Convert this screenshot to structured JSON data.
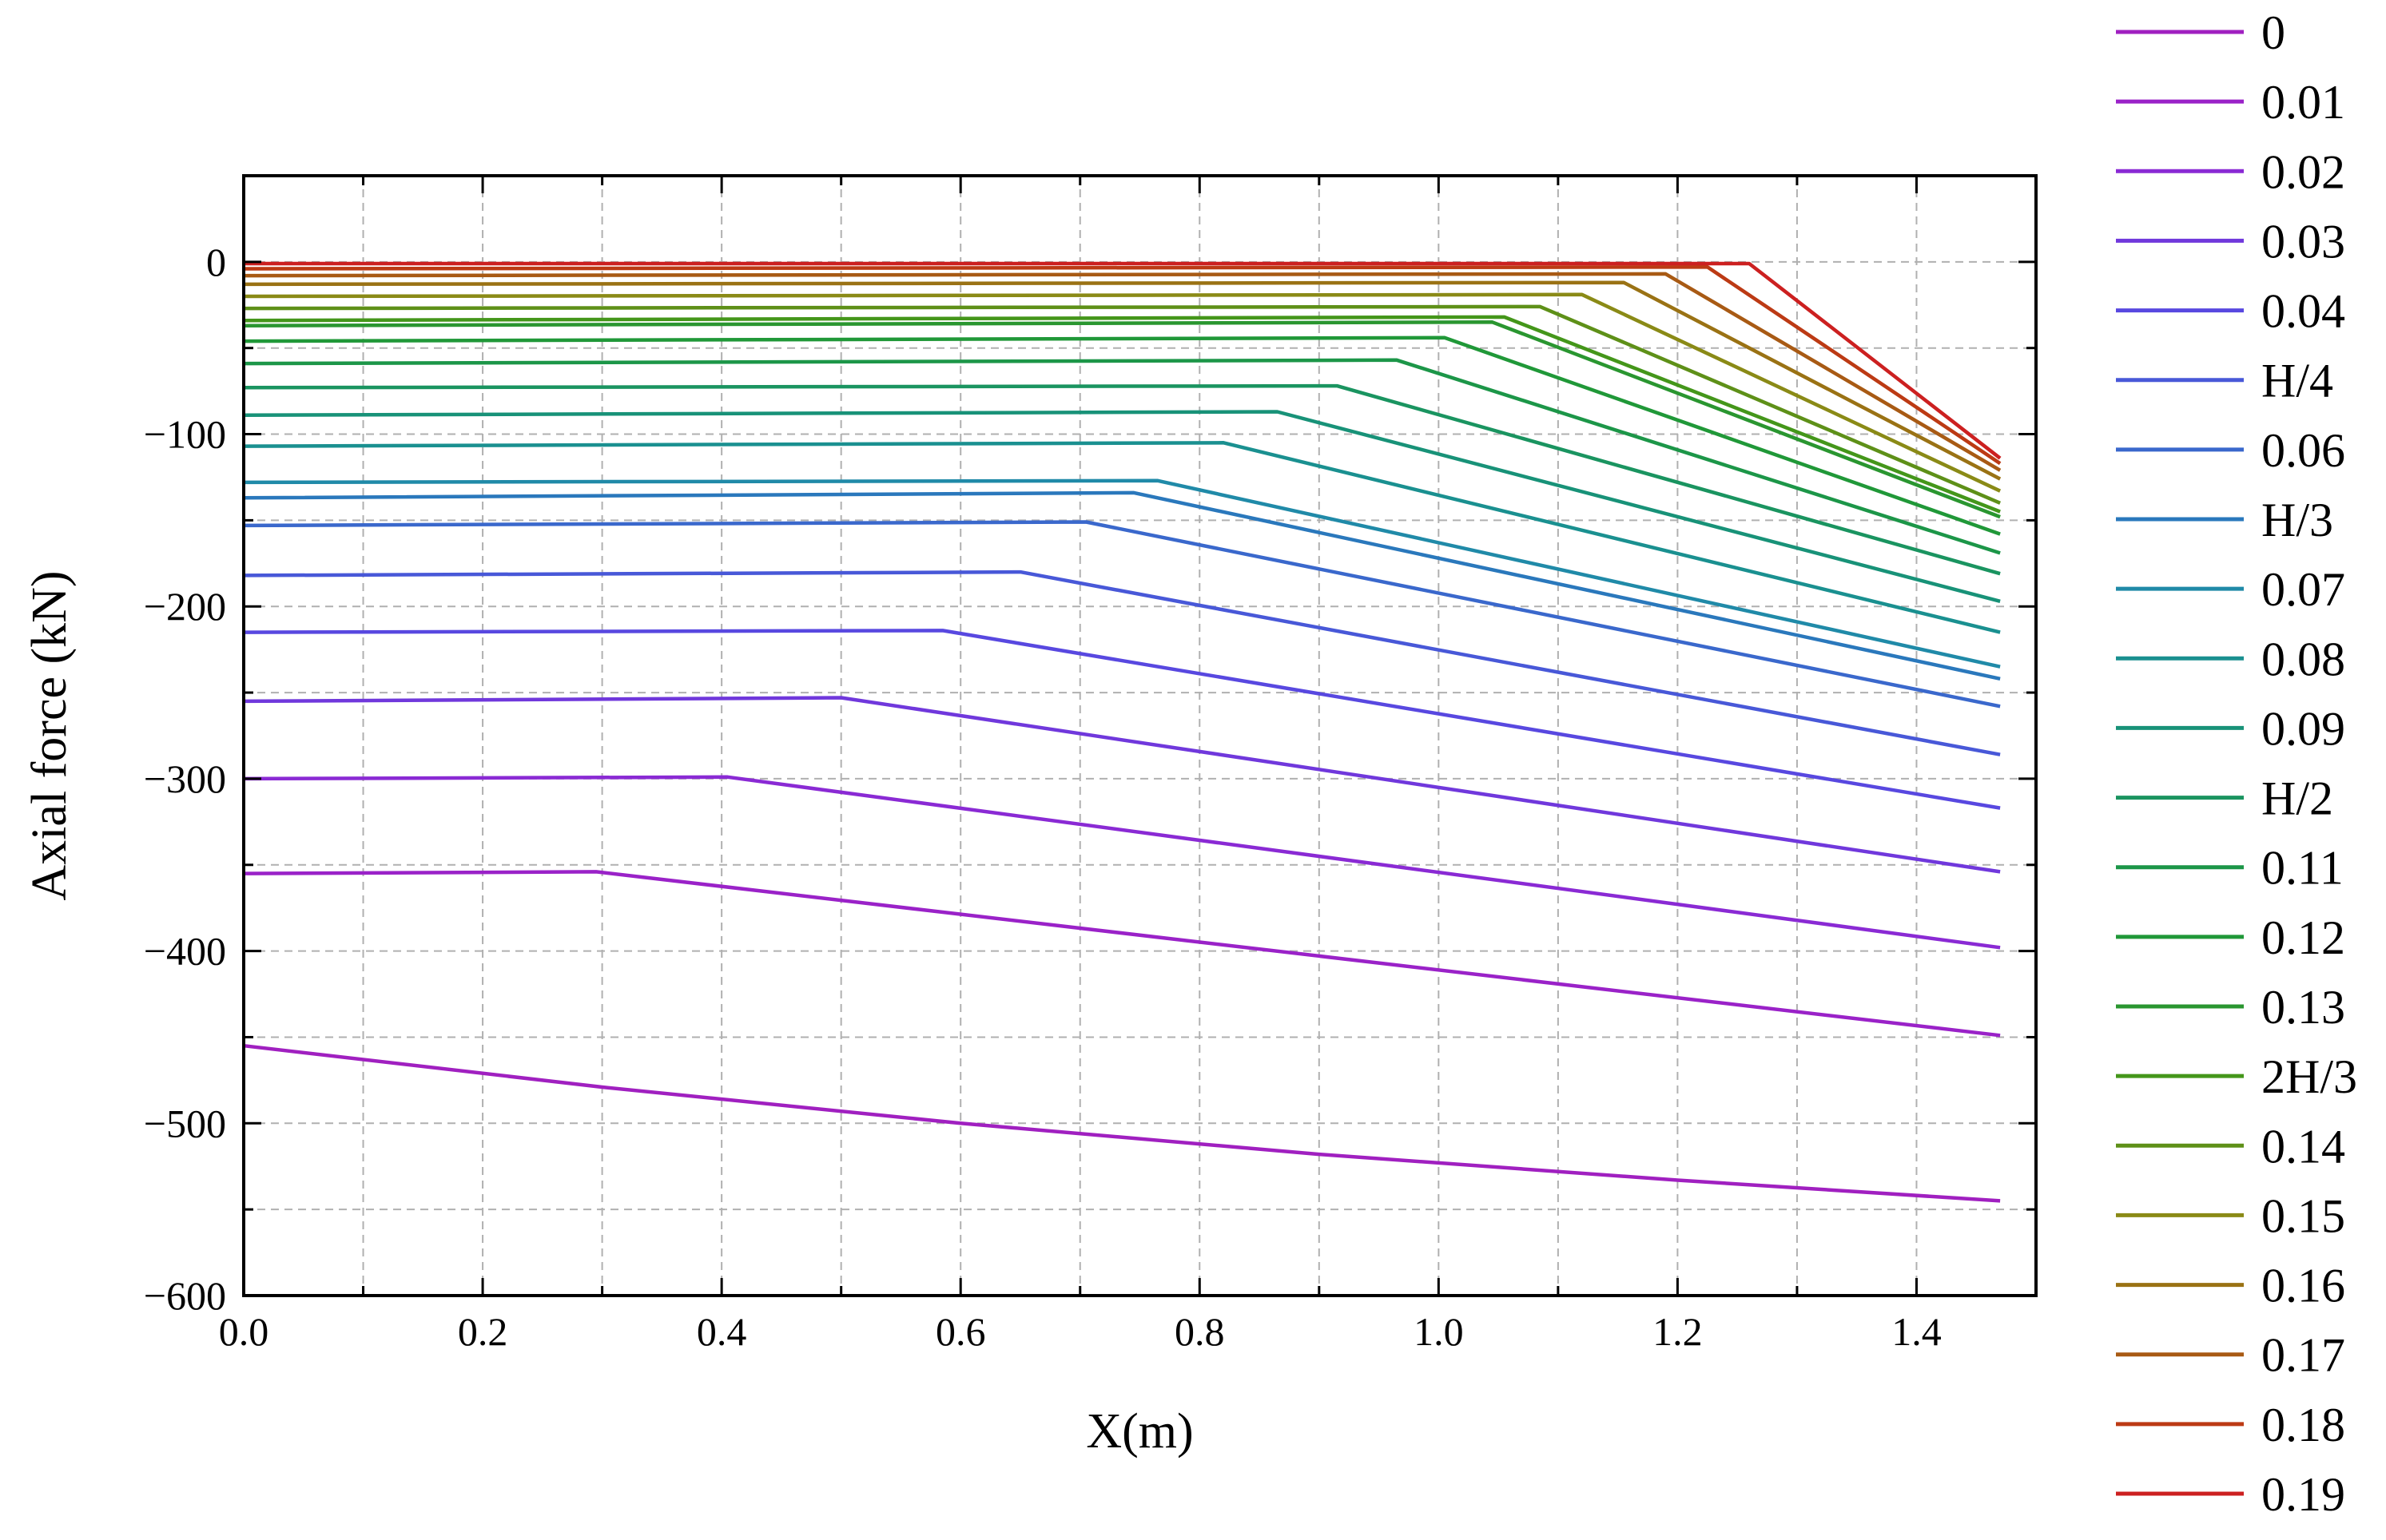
{
  "chart_data": {
    "type": "line",
    "title": "",
    "xlabel": "X(m)",
    "ylabel": "Axial force (kN)",
    "xlim": [
      0.0,
      1.5
    ],
    "ylim": [
      -600,
      50
    ],
    "xticks": [
      0.0,
      0.2,
      0.4,
      0.6,
      0.8,
      1.0,
      1.2,
      1.4
    ],
    "xtick_labels": [
      "0.0",
      "0.2",
      "0.4",
      "0.6",
      "0.8",
      "1.0",
      "1.2",
      "1.4"
    ],
    "yticks": [
      0,
      -100,
      -200,
      -300,
      -400,
      -500,
      -600
    ],
    "ytick_labels": [
      "0",
      "−100",
      "−200",
      "−300",
      "−400",
      "−500",
      "−600"
    ],
    "grid": true,
    "legend_position": "right",
    "series": [
      {
        "name": "0",
        "color": "#a020c0",
        "points": [
          [
            0,
            -455
          ],
          [
            0.3,
            -479
          ],
          [
            0.6,
            -500
          ],
          [
            0.9,
            -518
          ],
          [
            1.2,
            -533
          ],
          [
            1.47,
            -545
          ]
        ]
      },
      {
        "name": "0.01",
        "color": "#9a22c8",
        "points": [
          [
            0,
            -355
          ],
          [
            0.295,
            -354
          ],
          [
            1.47,
            -449
          ]
        ]
      },
      {
        "name": "0.02",
        "color": "#8a2ad4",
        "points": [
          [
            0,
            -300
          ],
          [
            0.405,
            -299
          ],
          [
            1.47,
            -398
          ]
        ]
      },
      {
        "name": "0.03",
        "color": "#7038dc",
        "points": [
          [
            0,
            -255
          ],
          [
            0.5,
            -253
          ],
          [
            1.47,
            -354
          ]
        ]
      },
      {
        "name": "0.04",
        "color": "#5848e0",
        "points": [
          [
            0,
            -215
          ],
          [
            0.585,
            -214
          ],
          [
            1.47,
            -317
          ]
        ]
      },
      {
        "name": "H/4",
        "color": "#4858d8",
        "points": [
          [
            0,
            -182
          ],
          [
            0.65,
            -180
          ],
          [
            1.47,
            -286
          ]
        ]
      },
      {
        "name": "0.06",
        "color": "#3a68cc",
        "points": [
          [
            0,
            -153
          ],
          [
            0.705,
            -151
          ],
          [
            1.47,
            -258
          ]
        ]
      },
      {
        "name": "H/3",
        "color": "#2a78bc",
        "points": [
          [
            0,
            -137
          ],
          [
            0.745,
            -134
          ],
          [
            1.47,
            -242
          ]
        ]
      },
      {
        "name": "0.07",
        "color": "#208aa8",
        "points": [
          [
            0,
            -128
          ],
          [
            0.765,
            -127
          ],
          [
            1.47,
            -235
          ]
        ]
      },
      {
        "name": "0.08",
        "color": "#1a9090",
        "points": [
          [
            0,
            -107
          ],
          [
            0.82,
            -105
          ],
          [
            1.47,
            -215
          ]
        ]
      },
      {
        "name": "0.09",
        "color": "#189278",
        "points": [
          [
            0,
            -89
          ],
          [
            0.865,
            -87
          ],
          [
            1.47,
            -197
          ]
        ]
      },
      {
        "name": "H/2",
        "color": "#1a9460",
        "points": [
          [
            0,
            -73
          ],
          [
            0.915,
            -72
          ],
          [
            1.47,
            -181
          ]
        ]
      },
      {
        "name": "0.11",
        "color": "#1c9648",
        "points": [
          [
            0,
            -59
          ],
          [
            0.965,
            -57
          ],
          [
            1.47,
            -169
          ]
        ]
      },
      {
        "name": "0.12",
        "color": "#209838",
        "points": [
          [
            0,
            -46
          ],
          [
            1.005,
            -44
          ],
          [
            1.47,
            -158
          ]
        ]
      },
      {
        "name": "0.13",
        "color": "#2a9630",
        "points": [
          [
            0,
            -37
          ],
          [
            1.045,
            -35
          ],
          [
            1.47,
            -148
          ]
        ]
      },
      {
        "name": "2H/3",
        "color": "#44961a",
        "points": [
          [
            0,
            -34
          ],
          [
            1.055,
            -32
          ],
          [
            1.47,
            -145
          ]
        ]
      },
      {
        "name": "0.14",
        "color": "#5e9018",
        "points": [
          [
            0,
            -27
          ],
          [
            1.085,
            -26
          ],
          [
            1.47,
            -140
          ]
        ]
      },
      {
        "name": "0.15",
        "color": "#8a8a16",
        "points": [
          [
            0,
            -20
          ],
          [
            1.12,
            -19
          ],
          [
            1.47,
            -133
          ]
        ]
      },
      {
        "name": "0.16",
        "color": "#9a7214",
        "points": [
          [
            0,
            -13
          ],
          [
            1.155,
            -12
          ],
          [
            1.47,
            -126
          ]
        ]
      },
      {
        "name": "0.17",
        "color": "#a85a14",
        "points": [
          [
            0,
            -8
          ],
          [
            1.19,
            -7
          ],
          [
            1.47,
            -121
          ]
        ]
      },
      {
        "name": "0.18",
        "color": "#bc3a14",
        "points": [
          [
            0,
            -4
          ],
          [
            1.225,
            -3
          ],
          [
            1.47,
            -117
          ]
        ]
      },
      {
        "name": "0.19",
        "color": "#cc2020",
        "points": [
          [
            0,
            -1
          ],
          [
            1.26,
            -1
          ],
          [
            1.47,
            -114
          ]
        ]
      }
    ]
  }
}
